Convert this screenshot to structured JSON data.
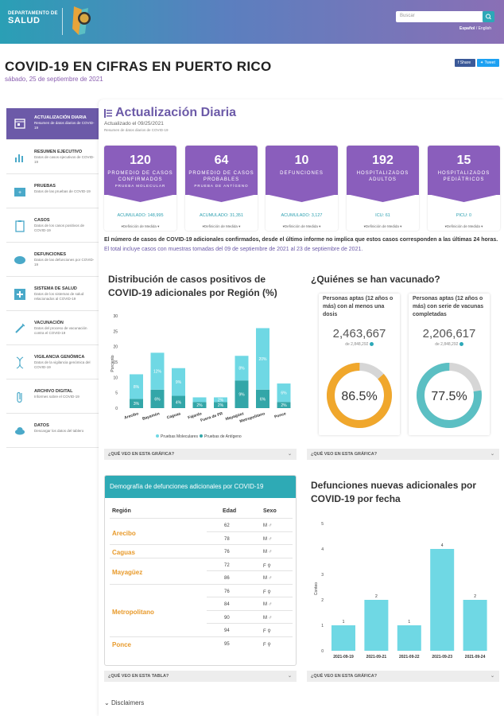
{
  "header": {
    "dept_line1": "DEPARTAMENTO DE",
    "dept_line2": "SALUD",
    "search_placeholder": "Buscar",
    "lang_es": "Español",
    "lang_sep": " / ",
    "lang_en": "English"
  },
  "page": {
    "title": "COVID-19 EN CIFRAS EN PUERTO RICO",
    "date": "sábado, 25 de septiembre de 2021",
    "share_fb": "Share",
    "share_tw": "Tweet"
  },
  "sidebar": {
    "items": [
      {
        "title": "ACTUALIZACIÓN DIARIA",
        "desc": "Resumen de datos diarios de COVID-19",
        "icon": "calendar-icon"
      },
      {
        "title": "RESUMEN EJECUTIVO",
        "desc": "Datos de casos ejecutivos de COVID-19",
        "icon": "bar-chart-icon"
      },
      {
        "title": "PRUEBAS",
        "desc": "Datos de las pruebas de COVID-19",
        "icon": "test-kit-icon"
      },
      {
        "title": "CASOS",
        "desc": "Datos de los casos positivos de COVID-19",
        "icon": "clipboard-icon"
      },
      {
        "title": "DEFUNCIONES",
        "desc": "Datos de las defunciones por COVID-19",
        "icon": "defunciones-icon"
      },
      {
        "title": "SISTEMA DE SALUD",
        "desc": "Datos de los sistemas de salud relacionados al COVID-19",
        "icon": "health-system-icon"
      },
      {
        "title": "VACUNACIÓN",
        "desc": "Datos del proceso de vacunación contra el COVID-19",
        "icon": "syringe-icon"
      },
      {
        "title": "VIGILANCIA GENÓMICA",
        "desc": "Datos de la vigilancia genómica del COVID-19",
        "icon": "dna-icon"
      },
      {
        "title": "ARCHIVO DIGITAL",
        "desc": "Informes sobre el COVID-19",
        "icon": "paperclip-icon"
      },
      {
        "title": "DATOS",
        "desc": "Descargar los datos del tablero",
        "icon": "cloud-download-icon"
      }
    ]
  },
  "section": {
    "title": "Actualización Diaria",
    "updated": "Actualizado el 09/25/2021",
    "subtitle": "Resumen de datos diarios de COVID-19"
  },
  "stats": [
    {
      "value": "120",
      "label": "PROMEDIO DE CASOS CONFIRMADOS",
      "test": "PRUEBA MOLECULAR",
      "sub": "ACUMULADO: 148,995",
      "def": "▾Definición de Medida ▾"
    },
    {
      "value": "64",
      "label": "PROMEDIO DE CASOS PROBABLES",
      "test": "PRUEBA DE ANTÍGENO",
      "sub": "ACUMULADO: 31,351",
      "def": "▾Definición de Medida ▾"
    },
    {
      "value": "10",
      "label": "DEFUNCIONES",
      "test": "",
      "sub": "ACUMULADO: 3,127",
      "def": "▾Definición de Medida ▾"
    },
    {
      "value": "192",
      "label": "HOSPITALIZADOS ADULTOS",
      "test": "",
      "sub": "ICU: 61",
      "def": "▾Definición de Medida ▾"
    },
    {
      "value": "15",
      "label": "HOSPITALIZADOS PEDIÁTRICOS",
      "test": "",
      "sub": "PICU: 0",
      "def": "▾Definición de Medida ▾"
    }
  ],
  "notice": {
    "bold": "El número de casos de COVID-19 adicionales confirmados, desde el último informe no implica que estos casos corresponden a las últimas 24 horas.",
    "note": "El total incluye casos con muestras tomadas del 09 de septiembre de 2021 al 23 de septiembre de 2021."
  },
  "region_chart": {
    "title_line1": "Distribución de casos positivos de",
    "title_line2": "COVID-19 adicionales por Región (%)",
    "accordion": "¿QUÉ VEO EN ESTA GRÁFICA?"
  },
  "vaccination": {
    "title": "¿Quiénes se han vacunado?",
    "cards": [
      {
        "heading": "Personas aptas (12 años o más) con al menos una dosis",
        "number": "2,463,667",
        "of": "de 2,848,292",
        "percent": "86.5%",
        "fraction": 0.865,
        "color": "#f0a72c"
      },
      {
        "heading": "Personas aptas (12 años o más) con serie de vacunas completadas",
        "number": "2,206,617",
        "of": "de 2,848,292",
        "percent": "77.5%",
        "fraction": 0.775,
        "color": "#5bbfc3"
      }
    ],
    "accordion": "¿QUÉ VEO EN ESTA GRÁFICA?"
  },
  "deaths_table": {
    "title": "Demografía de defunciones adicionales por COVID-19",
    "headers": {
      "region": "Región",
      "edad": "Edad",
      "sexo": "Sexo"
    },
    "groups": [
      {
        "region": "Arecibo",
        "rows": [
          {
            "edad": "62",
            "sexo": "M ♂"
          },
          {
            "edad": "78",
            "sexo": "M ♂"
          }
        ]
      },
      {
        "region": "Caguas",
        "rows": [
          {
            "edad": "76",
            "sexo": "M ♂"
          }
        ]
      },
      {
        "region": "Mayagüez",
        "rows": [
          {
            "edad": "72",
            "sexo": "F ⚲"
          },
          {
            "edad": "86",
            "sexo": "M ♂"
          }
        ]
      },
      {
        "region": "Metropolitano",
        "rows": [
          {
            "edad": "76",
            "sexo": "F ⚲"
          },
          {
            "edad": "84",
            "sexo": "M ♂"
          },
          {
            "edad": "90",
            "sexo": "M ♂"
          },
          {
            "edad": "94",
            "sexo": "F ⚲"
          }
        ]
      },
      {
        "region": "Ponce",
        "rows": [
          {
            "edad": "95",
            "sexo": "F ⚲"
          }
        ]
      }
    ],
    "accordion": "¿QUÉ VEO EN ESTA TABLA?"
  },
  "deaths_chart": {
    "title_line1": "Defunciones nuevas adicionales por",
    "title_line2": "COVID-19 por fecha",
    "accordion": "¿QUÉ VEO EN ESTA GRÁFICA?"
  },
  "disclaimers": "Disclaimers",
  "chart_data": [
    {
      "type": "bar",
      "title": "Distribución de casos positivos de COVID-19 adicionales por Región (%)",
      "categories": [
        "Arecibo",
        "Bayamón",
        "Caguas",
        "Fajardo",
        "Fuera de PR",
        "Mayagüez",
        "Metropolitano",
        "Ponce"
      ],
      "series": [
        {
          "name": "Pruebas de Antígeno",
          "values": [
            3,
            6,
            4,
            2,
            2,
            9,
            6,
            2
          ],
          "labels": [
            "3%",
            "6%",
            "4%",
            "2%",
            "2%",
            "9%",
            "6%",
            "2%"
          ],
          "color": "#33a6a8"
        },
        {
          "name": "Pruebas Moleculares",
          "values": [
            8,
            12,
            9,
            1.5,
            1.5,
            8,
            20,
            6
          ],
          "labels": [
            "8%",
            "12%",
            "9%",
            "",
            "2%",
            "8%",
            "20%",
            "6%"
          ],
          "color": "#6fd8e4"
        }
      ],
      "stacked": true,
      "ylabel": "Porciento",
      "yticks": [
        0,
        5,
        10,
        15,
        20,
        25,
        30
      ],
      "ylim": [
        0,
        30
      ]
    },
    {
      "type": "bar",
      "title": "Defunciones nuevas adicionales por COVID-19 por fecha",
      "categories": [
        "2021-09-19",
        "2021-09-21",
        "2021-09-22",
        "2021-09-23",
        "2021-09-24"
      ],
      "values": [
        1,
        2,
        1,
        4,
        2
      ],
      "ylabel": "Conteo",
      "yticks": [
        0,
        1,
        2,
        3,
        4,
        5
      ],
      "ylim": [
        0,
        5
      ],
      "color": "#6fd8e4"
    }
  ]
}
